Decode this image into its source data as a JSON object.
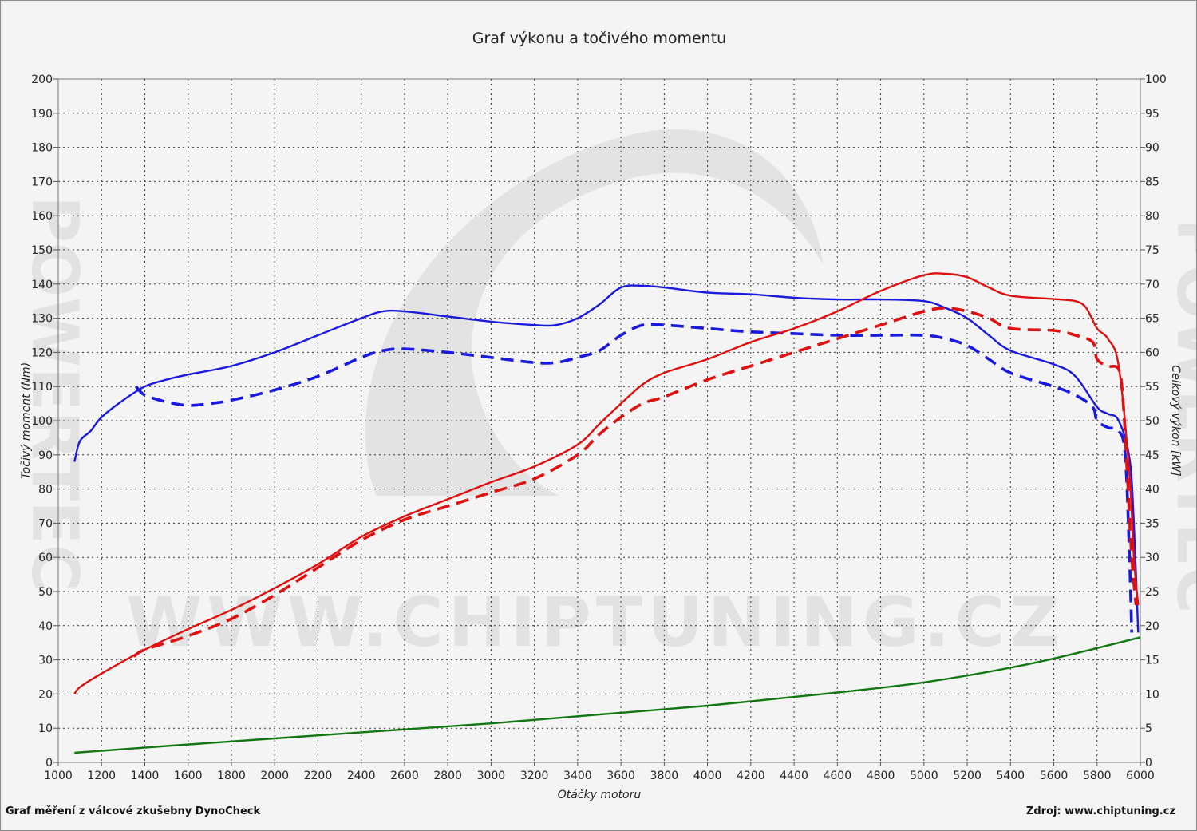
{
  "chart_data": {
    "type": "line",
    "title": "Graf výkonu a točivého momentu",
    "xlabel": "Otáčky motoru",
    "ylabel_left": "Točivý moment (Nm)",
    "ylabel_right": "Celkový výkon [kW]",
    "xlim": [
      1000,
      6000
    ],
    "ylim_left": [
      0,
      200
    ],
    "ylim_right": [
      0,
      100
    ],
    "x_ticks": [
      1000,
      1200,
      1400,
      1600,
      1800,
      2000,
      2200,
      2400,
      2600,
      2800,
      3000,
      3200,
      3400,
      3600,
      3800,
      4000,
      4200,
      4400,
      4600,
      4800,
      5000,
      5200,
      5400,
      5600,
      5800,
      6000
    ],
    "y_left_ticks": [
      0,
      10,
      20,
      30,
      40,
      50,
      60,
      70,
      80,
      90,
      100,
      110,
      120,
      130,
      140,
      150,
      160,
      170,
      180,
      190,
      200
    ],
    "y_right_ticks": [
      0,
      5,
      10,
      15,
      20,
      25,
      30,
      35,
      40,
      45,
      50,
      55,
      60,
      65,
      70,
      75,
      80,
      85,
      90,
      95,
      100
    ],
    "grid": true,
    "series": [
      {
        "color": "#1a1adf",
        "dash": false,
        "axis": "left",
        "x": [
          1075,
          1100,
          1150,
          1200,
          1300,
          1400,
          1500,
          1600,
          1800,
          2000,
          2200,
          2400,
          2500,
          2600,
          2800,
          3000,
          3200,
          3300,
          3400,
          3500,
          3600,
          3700,
          3800,
          4000,
          4200,
          4400,
          4600,
          4800,
          5000,
          5100,
          5200,
          5300,
          5400,
          5600,
          5700,
          5800,
          5850,
          5900,
          5950,
          5970,
          5990
        ],
        "y": [
          88,
          94,
          97,
          101,
          106,
          110,
          112,
          113.5,
          116,
          120,
          125,
          130,
          132,
          132,
          130.5,
          129,
          128,
          128,
          130,
          134,
          139,
          139.5,
          139,
          137.5,
          137,
          136,
          135.5,
          135.5,
          135,
          133,
          130,
          125,
          120.5,
          116.5,
          113,
          104,
          102,
          100,
          89,
          70,
          38
        ]
      },
      {
        "color": "#1a1adf",
        "dash": true,
        "axis": "left",
        "x": [
          1360,
          1400,
          1500,
          1600,
          1700,
          1800,
          2000,
          2200,
          2400,
          2500,
          2600,
          2800,
          3000,
          3200,
          3300,
          3400,
          3500,
          3600,
          3700,
          3800,
          4000,
          4200,
          4400,
          4600,
          4800,
          5000,
          5100,
          5200,
          5300,
          5400,
          5600,
          5700,
          5780,
          5800,
          5850,
          5900,
          5930,
          5950,
          5960
        ],
        "y": [
          110,
          107.5,
          105.5,
          104.5,
          105,
          106,
          109,
          113,
          118.5,
          120.5,
          121,
          120,
          118.5,
          117,
          117,
          118.5,
          120.5,
          125,
          128,
          128,
          127,
          126,
          125.5,
          125,
          125,
          125,
          124,
          122,
          118,
          114,
          110,
          107.5,
          104,
          100,
          98,
          97,
          90,
          60,
          38
        ]
      },
      {
        "color": "#e01010",
        "dash": false,
        "axis": "right",
        "x": [
          1075,
          1100,
          1200,
          1400,
          1600,
          1800,
          2000,
          2200,
          2400,
          2600,
          2800,
          3000,
          3200,
          3400,
          3500,
          3600,
          3700,
          3800,
          4000,
          4200,
          4400,
          4600,
          4800,
          5000,
          5100,
          5200,
          5300,
          5400,
          5600,
          5700,
          5750,
          5800,
          5850,
          5900,
          5950,
          5970,
          5990
        ],
        "y": [
          10,
          11,
          13,
          16.5,
          19.5,
          22.3,
          25.5,
          29,
          33,
          36,
          38.5,
          41,
          43.3,
          46.5,
          49.5,
          52.5,
          55.3,
          57,
          59,
          61.5,
          63.5,
          66,
          69,
          71.3,
          71.5,
          71,
          69.5,
          68.3,
          67.8,
          67.5,
          66.5,
          63.5,
          62,
          58,
          42,
          30,
          23
        ]
      },
      {
        "color": "#e01010",
        "dash": true,
        "axis": "right",
        "x": [
          1350,
          1400,
          1600,
          1800,
          2000,
          2200,
          2400,
          2600,
          2800,
          3000,
          3200,
          3400,
          3500,
          3600,
          3700,
          3800,
          4000,
          4200,
          4400,
          4600,
          4800,
          5000,
          5100,
          5200,
          5300,
          5400,
          5600,
          5700,
          5780,
          5800,
          5850,
          5900,
          5920,
          5940,
          5960,
          5980
        ],
        "y": [
          15.5,
          16.5,
          18.5,
          21,
          24.5,
          28.5,
          32.5,
          35.5,
          37.5,
          39.5,
          41.5,
          45,
          48,
          50.5,
          52.5,
          53.5,
          56,
          58,
          60,
          62,
          64,
          66,
          66.5,
          66,
          65,
          63.5,
          63.2,
          62.5,
          61.5,
          59,
          58,
          57.5,
          53,
          42,
          30,
          23
        ]
      },
      {
        "color": "#117711",
        "dash": false,
        "axis": "right",
        "x": [
          1075,
          1500,
          2000,
          2500,
          3000,
          3500,
          4000,
          4500,
          5000,
          5500,
          6000
        ],
        "y": [
          1.4,
          2.4,
          3.5,
          4.6,
          5.7,
          7.0,
          8.3,
          9.9,
          11.7,
          14.5,
          18.3
        ]
      }
    ]
  },
  "watermarks": {
    "main": "WWW.CHIPTUNING.CZ",
    "side": "POWERTEC"
  },
  "footer": {
    "left": "Graf měření z válcové zkušebny DynoCheck",
    "right": "Zdroj: www.chiptuning.cz"
  }
}
